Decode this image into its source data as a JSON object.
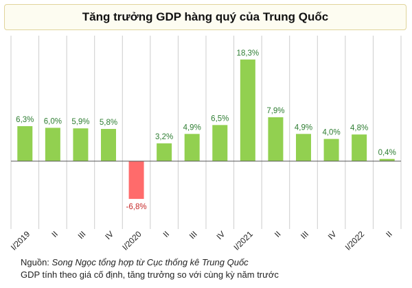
{
  "title": "Tăng trưởng GDP hàng quý của Trung Quốc",
  "colors": {
    "positive": "#92d050",
    "negative": "#ff6b6b",
    "grid": "#cccccc",
    "axis": "#555555",
    "label_pos": "#2e7d32",
    "label_neg": "#c62828"
  },
  "chart_data": {
    "type": "bar",
    "categories": [
      "I/2019",
      "II",
      "III",
      "IV",
      "I/2020",
      "II",
      "III",
      "IV",
      "I/2021",
      "II",
      "III",
      "IV",
      "I/2022",
      "II"
    ],
    "values": [
      6.3,
      6.0,
      5.9,
      5.8,
      -6.8,
      3.2,
      4.9,
      6.5,
      18.3,
      7.9,
      4.9,
      4.0,
      4.8,
      0.4
    ],
    "data_labels": [
      "6,3%",
      "6,0%",
      "5,9%",
      "5,8%",
      "-6,8%",
      "3,2%",
      "4,9%",
      "6,5%",
      "18,3%",
      "7,9%",
      "4,9%",
      "4,0%",
      "4,8%",
      "0,4%"
    ],
    "ylim": [
      -10,
      20
    ],
    "grid": "vertical"
  },
  "notes": {
    "source_label": "Nguồn:",
    "source_text": "Song Ngọc tổng hợp từ Cục thống kê Trung Quốc",
    "footnote": "GDP tính theo giá cố định, tăng trưởng so với cùng kỳ năm trước"
  }
}
